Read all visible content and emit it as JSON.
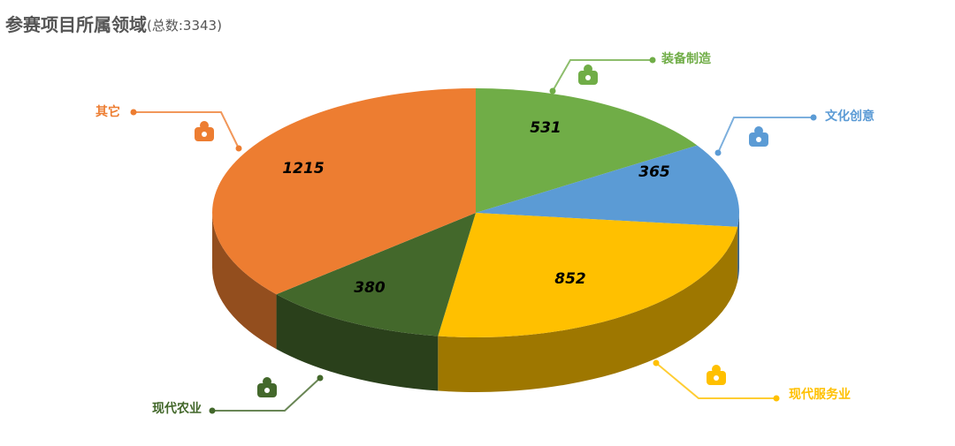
{
  "chart_data": {
    "type": "pie3d",
    "title": "参赛项目所属领域",
    "subtitle": "(总数:3343)",
    "categories": [
      "装备制造",
      "文化创意",
      "现代服务业",
      "现代农业",
      "其它"
    ],
    "values": [
      531,
      365,
      852,
      380,
      1215
    ],
    "colors": [
      "#70ad47",
      "#5b9bd5",
      "#ffc000",
      "#43682b",
      "#ed7d31"
    ]
  }
}
